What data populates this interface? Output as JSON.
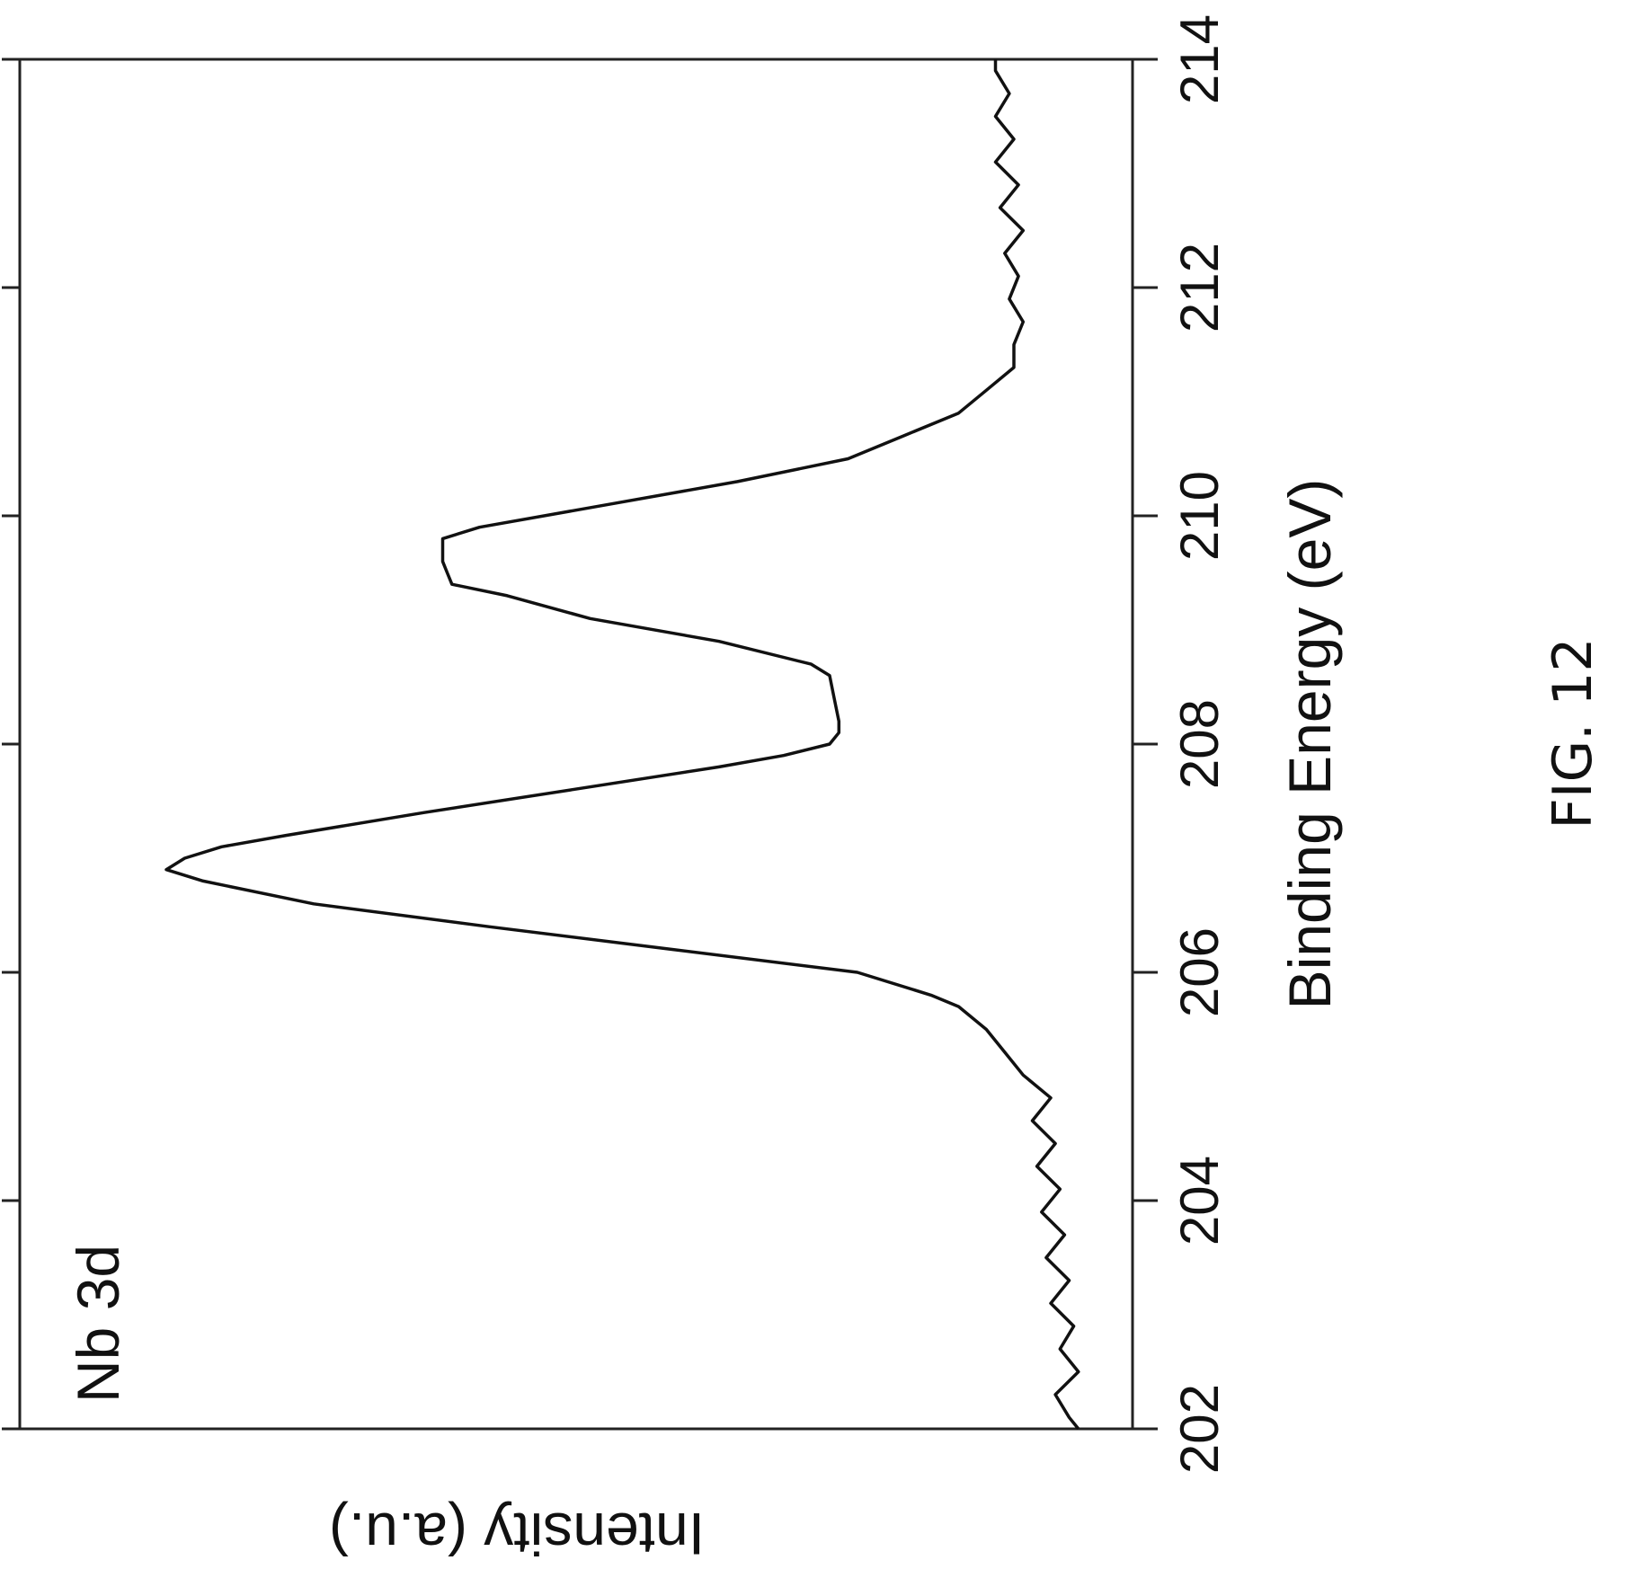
{
  "figure_label": "FIG. 12",
  "chart_data": {
    "type": "line",
    "title": "",
    "annotation": "Nb 3d",
    "xlabel": "Binding Energy (eV)",
    "ylabel": "Intensity (a.u.)",
    "xlim": [
      202,
      214
    ],
    "ylim": [
      0,
      1
    ],
    "x_ticks": [
      202,
      204,
      206,
      208,
      210,
      212,
      214
    ],
    "x_tick_labels": [
      "202",
      "204",
      "206",
      "208",
      "210",
      "212",
      "214"
    ],
    "grid": false,
    "legend": "none",
    "orientation": "rotated-90-ccw",
    "line_color": "#111111",
    "series": [
      {
        "x": [
          202.0,
          202.1,
          202.3,
          202.5,
          202.7,
          202.9,
          203.1,
          203.3,
          203.5,
          203.7,
          203.9,
          204.1,
          204.3,
          204.5,
          204.7,
          204.9,
          205.1,
          205.3,
          205.5,
          205.7,
          205.8,
          206.0,
          206.2,
          206.4,
          206.6,
          206.8,
          206.9,
          207.0,
          207.1,
          207.2,
          207.4,
          207.6,
          207.8,
          207.9,
          208.0,
          208.1,
          208.2,
          208.4,
          208.6,
          208.7,
          208.9,
          209.1,
          209.3,
          209.4,
          209.5,
          209.6,
          209.7,
          209.8,
          209.9,
          210.1,
          210.3,
          210.5,
          210.7,
          210.9,
          211.1,
          211.3,
          211.5,
          211.7,
          211.9,
          212.1,
          212.3,
          212.5,
          212.7,
          212.9,
          213.1,
          213.3,
          213.5,
          213.7,
          213.9,
          214.0
        ],
        "y": [
          0.01,
          0.02,
          0.035,
          0.01,
          0.03,
          0.015,
          0.04,
          0.02,
          0.045,
          0.025,
          0.05,
          0.03,
          0.055,
          0.035,
          0.06,
          0.04,
          0.07,
          0.09,
          0.11,
          0.14,
          0.17,
          0.25,
          0.45,
          0.65,
          0.84,
          0.96,
          1.0,
          0.98,
          0.94,
          0.87,
          0.72,
          0.56,
          0.4,
          0.33,
          0.28,
          0.27,
          0.27,
          0.275,
          0.28,
          0.3,
          0.4,
          0.54,
          0.63,
          0.69,
          0.695,
          0.7,
          0.7,
          0.7,
          0.66,
          0.52,
          0.38,
          0.26,
          0.2,
          0.14,
          0.11,
          0.08,
          0.08,
          0.07,
          0.085,
          0.075,
          0.09,
          0.07,
          0.095,
          0.075,
          0.1,
          0.08,
          0.1,
          0.085,
          0.1,
          0.1
        ]
      }
    ]
  }
}
